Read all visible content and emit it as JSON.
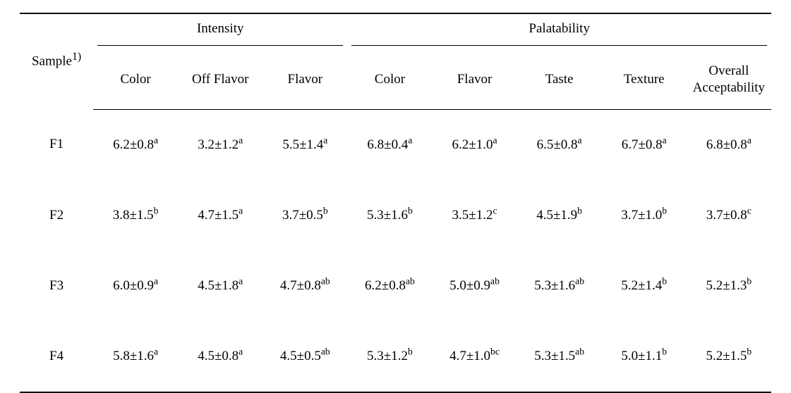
{
  "type": "table",
  "font": {
    "family": "Times New Roman",
    "size_pt": 14,
    "color": "#000000"
  },
  "rules": {
    "top": "2px solid #000",
    "mid": "1px solid #000",
    "bottom": "2px solid #000"
  },
  "header": {
    "sample_label": "Sample",
    "sample_sup": "1)",
    "groups": {
      "intensity": {
        "label": "Intensity",
        "span": 3
      },
      "palatability": {
        "label": "Palatability",
        "span": 5
      }
    },
    "columns": {
      "i_color": "Color",
      "i_off": "Off Flavor",
      "i_flavor": "Flavor",
      "p_color": "Color",
      "p_flavor": "Flavor",
      "p_taste": "Taste",
      "p_texture": "Texture",
      "p_overall_l1": "Overall",
      "p_overall_l2": "Acceptability"
    }
  },
  "rows": [
    {
      "sample": "F1",
      "i_color": {
        "v": "6.2±0.8",
        "s": "a"
      },
      "i_off": {
        "v": "3.2±1.2",
        "s": "a"
      },
      "i_flavor": {
        "v": "5.5±1.4",
        "s": "a"
      },
      "p_color": {
        "v": "6.8±0.4",
        "s": "a"
      },
      "p_flavor": {
        "v": "6.2±1.0",
        "s": "a"
      },
      "p_taste": {
        "v": "6.5±0.8",
        "s": "a"
      },
      "p_texture": {
        "v": "6.7±0.8",
        "s": "a"
      },
      "p_overall": {
        "v": "6.8±0.8",
        "s": "a"
      }
    },
    {
      "sample": "F2",
      "i_color": {
        "v": "3.8±1.5",
        "s": "b"
      },
      "i_off": {
        "v": "4.7±1.5",
        "s": "a"
      },
      "i_flavor": {
        "v": "3.7±0.5",
        "s": "b"
      },
      "p_color": {
        "v": "5.3±1.6",
        "s": "b"
      },
      "p_flavor": {
        "v": "3.5±1.2",
        "s": "c"
      },
      "p_taste": {
        "v": "4.5±1.9",
        "s": "b"
      },
      "p_texture": {
        "v": "3.7±1.0",
        "s": "b"
      },
      "p_overall": {
        "v": "3.7±0.8",
        "s": "c"
      }
    },
    {
      "sample": "F3",
      "i_color": {
        "v": "6.0±0.9",
        "s": "a"
      },
      "i_off": {
        "v": "4.5±1.8",
        "s": "a"
      },
      "i_flavor": {
        "v": "4.7±0.8",
        "s": "ab"
      },
      "p_color": {
        "v": "6.2±0.8",
        "s": "ab"
      },
      "p_flavor": {
        "v": "5.0±0.9",
        "s": "ab"
      },
      "p_taste": {
        "v": "5.3±1.6",
        "s": "ab"
      },
      "p_texture": {
        "v": "5.2±1.4",
        "s": "b"
      },
      "p_overall": {
        "v": "5.2±1.3",
        "s": "b"
      }
    },
    {
      "sample": "F4",
      "i_color": {
        "v": "5.8±1.6",
        "s": "a"
      },
      "i_off": {
        "v": "4.5±0.8",
        "s": "a"
      },
      "i_flavor": {
        "v": "4.5±0.5",
        "s": "ab"
      },
      "p_color": {
        "v": "5.3±1.2",
        "s": "b"
      },
      "p_flavor": {
        "v": "4.7±1.0",
        "s": "bc"
      },
      "p_taste": {
        "v": "5.3±1.5",
        "s": "ab"
      },
      "p_texture": {
        "v": "5.0±1.1",
        "s": "b"
      },
      "p_overall": {
        "v": "5.2±1.5",
        "s": "b"
      }
    }
  ]
}
